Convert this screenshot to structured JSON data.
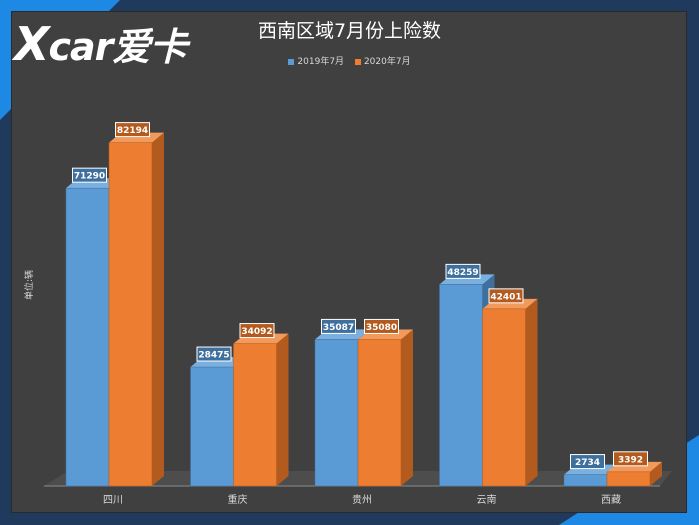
{
  "brand": {
    "logo_text": "X car爱卡"
  },
  "colors": {
    "series_2019": "#5b9bd5",
    "series_2020": "#ed7d31",
    "background": "#404040"
  },
  "chart_data": {
    "type": "bar",
    "title": "西南区域7月份上险数",
    "ylabel": "单位:辆",
    "xlabel": "",
    "categories": [
      "四川",
      "重庆",
      "贵州",
      "云南",
      "西藏"
    ],
    "series": [
      {
        "name": "2019年7月",
        "values": [
          71290,
          28475,
          35087,
          48259,
          2734
        ]
      },
      {
        "name": "2020年7月",
        "values": [
          82194,
          34092,
          35080,
          42401,
          3392
        ]
      }
    ],
    "ylim": [
      0,
      90000
    ],
    "grid": false,
    "legend": "top-center"
  }
}
